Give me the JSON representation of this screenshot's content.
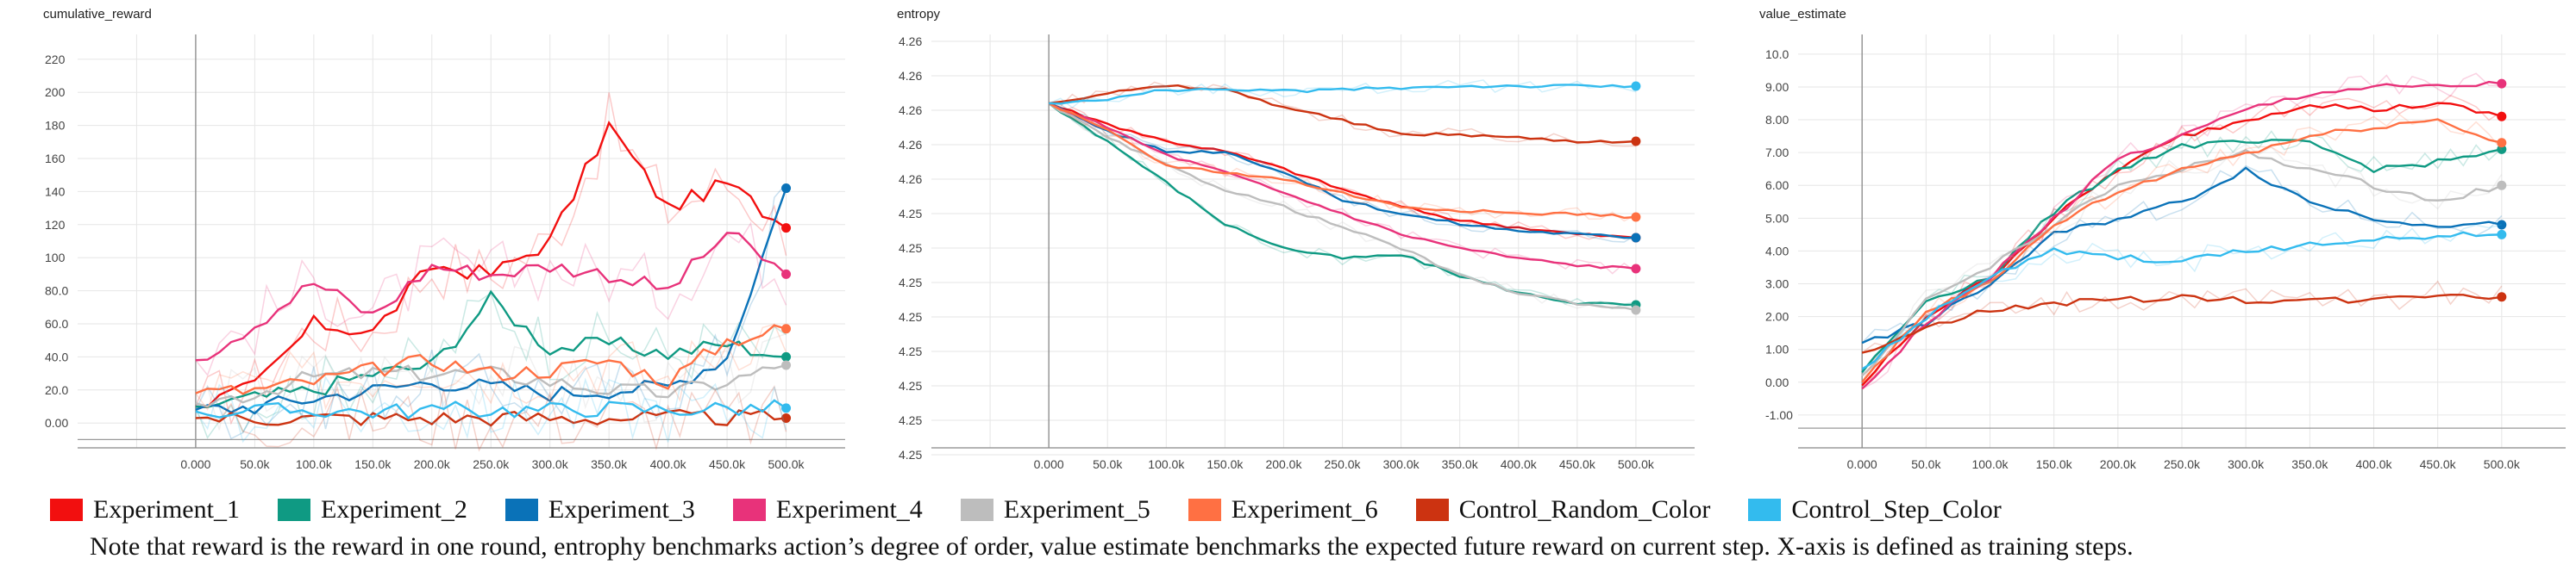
{
  "colors": {
    "Experiment_1": "#f20f0f",
    "Experiment_2": "#0f9a83",
    "Experiment_3": "#0a72b8",
    "Experiment_4": "#e8327a",
    "Experiment_5": "#bdbdbd",
    "Experiment_6": "#ff7043",
    "Control_Random_Color": "#cc3311",
    "Control_Step_Color": "#33bbee"
  },
  "legend": [
    {
      "name": "Experiment_1",
      "color": "#f20f0f"
    },
    {
      "name": "Experiment_2",
      "color": "#0f9a83"
    },
    {
      "name": "Experiment_3",
      "color": "#0a72b8"
    },
    {
      "name": "Experiment_4",
      "color": "#e8327a"
    },
    {
      "name": "Experiment_5",
      "color": "#bdbdbd"
    },
    {
      "name": "Experiment_6",
      "color": "#ff7043"
    },
    {
      "name": "Control_Random_Color",
      "color": "#cc3311"
    },
    {
      "name": "Control_Step_Color",
      "color": "#33bbee"
    }
  ],
  "note": "Note that reward is the reward in one round, entrophy benchmarks action’s degree of order, value estimate benchmarks the expected future reward on current step. X-axis is defined as training steps.",
  "chart_data": [
    {
      "type": "line",
      "title": "cumulative_reward",
      "x_tick_labels": [
        "0.000",
        "50.0k",
        "100.0k",
        "150.0k",
        "200.0k",
        "250.0k",
        "300.0k",
        "350.0k",
        "400.0k",
        "450.0k",
        "500.0k"
      ],
      "y_tick_labels": [
        "0.00",
        "20.0",
        "40.0",
        "60.0",
        "80.0",
        "100",
        "120",
        "140",
        "160",
        "180",
        "200",
        "220"
      ],
      "xlim": [
        -100000,
        550000
      ],
      "ylim": [
        -15,
        235
      ],
      "x": [
        0,
        50000,
        100000,
        150000,
        200000,
        250000,
        300000,
        350000,
        400000,
        450000,
        500000
      ],
      "series": [
        {
          "name": "Experiment_1",
          "values": [
            10,
            22,
            60,
            55,
            95,
            90,
            110,
            180,
            130,
            145,
            118
          ]
        },
        {
          "name": "Experiment_2",
          "values": [
            10,
            15,
            20,
            30,
            35,
            75,
            45,
            48,
            42,
            48,
            40
          ]
        },
        {
          "name": "Experiment_3",
          "values": [
            8,
            10,
            15,
            20,
            25,
            22,
            18,
            20,
            22,
            40,
            142
          ]
        },
        {
          "name": "Experiment_4",
          "values": [
            38,
            60,
            85,
            65,
            95,
            90,
            95,
            90,
            80,
            115,
            90
          ]
        },
        {
          "name": "Experiment_5",
          "values": [
            12,
            18,
            28,
            30,
            30,
            30,
            25,
            20,
            18,
            25,
            35
          ]
        },
        {
          "name": "Experiment_6",
          "values": [
            18,
            20,
            25,
            32,
            38,
            30,
            32,
            38,
            25,
            50,
            57
          ]
        },
        {
          "name": "Control_Random_Color",
          "values": [
            3,
            3,
            3,
            3,
            3,
            3,
            3,
            3,
            3,
            3,
            3
          ]
        },
        {
          "name": "Control_Step_Color",
          "values": [
            7,
            7,
            8,
            7,
            8,
            8,
            8,
            9,
            8,
            9,
            9
          ]
        }
      ]
    },
    {
      "type": "line",
      "title": "entropy",
      "x_tick_labels": [
        "0.000",
        "50.0k",
        "100.0k",
        "150.0k",
        "200.0k",
        "250.0k",
        "300.0k",
        "350.0k",
        "400.0k",
        "450.0k",
        "500.0k"
      ],
      "y_tick_labels": [
        "4.25",
        "4.25",
        "4.25",
        "4.25",
        "4.25",
        "4.25",
        "4.25",
        "4.25",
        "4.26",
        "4.26",
        "4.26",
        "4.26",
        "4.26"
      ],
      "xlim": [
        -100000,
        550000
      ],
      "ylim": [
        0,
        12
      ],
      "x": [
        0,
        50000,
        100000,
        150000,
        200000,
        250000,
        300000,
        350000,
        400000,
        450000,
        500000
      ],
      "series": [
        {
          "name": "Experiment_1",
          "values": [
            10,
            9.4,
            8.9,
            8.6,
            8.1,
            7.5,
            7.0,
            6.6,
            6.4,
            6.2,
            6.1
          ]
        },
        {
          "name": "Experiment_2",
          "values": [
            10,
            8.9,
            7.7,
            6.5,
            5.8,
            5.5,
            5.6,
            5.0,
            4.5,
            4.2,
            4.15
          ]
        },
        {
          "name": "Experiment_3",
          "values": [
            10,
            9.2,
            8.6,
            8.6,
            8.0,
            7.2,
            6.8,
            6.5,
            6.3,
            6.2,
            6.1
          ]
        },
        {
          "name": "Experiment_4",
          "values": [
            10,
            9.3,
            8.5,
            8.0,
            7.4,
            6.8,
            6.2,
            5.8,
            5.5,
            5.3,
            5.2
          ]
        },
        {
          "name": "Experiment_5",
          "values": [
            10,
            9.0,
            8.2,
            7.5,
            7.0,
            6.4,
            5.8,
            5.0,
            4.5,
            4.2,
            4.0
          ]
        },
        {
          "name": "Experiment_6",
          "values": [
            10,
            9.2,
            8.2,
            8.0,
            7.8,
            7.4,
            7.0,
            6.9,
            6.8,
            6.8,
            6.7
          ]
        },
        {
          "name": "Control_Random_Color",
          "values": [
            10,
            10.3,
            10.5,
            10.4,
            9.9,
            9.5,
            9.1,
            9.1,
            9.0,
            8.9,
            8.9
          ]
        },
        {
          "name": "Control_Step_Color",
          "values": [
            10,
            10.1,
            10.4,
            10.4,
            10.35,
            10.4,
            10.45,
            10.5,
            10.5,
            10.5,
            10.5
          ]
        }
      ]
    },
    {
      "type": "line",
      "title": "value_estimate",
      "x_tick_labels": [
        "0.000",
        "50.0k",
        "100.0k",
        "150.0k",
        "200.0k",
        "250.0k",
        "300.0k",
        "350.0k",
        "400.0k",
        "450.0k",
        "500.0k"
      ],
      "y_tick_labels": [
        "-1.00",
        "0.00",
        "1.00",
        "2.00",
        "3.00",
        "4.00",
        "5.00",
        "6.00",
        "7.00",
        "8.00",
        "9.00",
        "10.0"
      ],
      "xlim": [
        -50000,
        550000
      ],
      "ylim": [
        -2,
        10.6
      ],
      "x": [
        0,
        50000,
        100000,
        150000,
        200000,
        250000,
        300000,
        350000,
        400000,
        450000,
        500000
      ],
      "series": [
        {
          "name": "Experiment_1",
          "values": [
            -0.1,
            2.0,
            3.2,
            5.0,
            6.5,
            7.5,
            8.0,
            8.5,
            8.3,
            8.5,
            8.1
          ]
        },
        {
          "name": "Experiment_2",
          "values": [
            0.3,
            2.5,
            3.2,
            5.2,
            6.5,
            7.2,
            7.3,
            7.3,
            6.5,
            6.7,
            7.1
          ]
        },
        {
          "name": "Experiment_3",
          "values": [
            1.2,
            1.8,
            3.0,
            4.5,
            5.0,
            5.5,
            6.5,
            5.5,
            5.0,
            4.8,
            4.8
          ]
        },
        {
          "name": "Experiment_4",
          "values": [
            -0.2,
            1.8,
            3.2,
            5.0,
            6.8,
            7.5,
            8.3,
            8.8,
            9.0,
            9.0,
            9.1
          ]
        },
        {
          "name": "Experiment_5",
          "values": [
            0.2,
            2.5,
            3.5,
            4.8,
            6.0,
            6.5,
            7.0,
            6.5,
            6.0,
            5.5,
            6.0
          ]
        },
        {
          "name": "Experiment_6",
          "values": [
            0.0,
            2.2,
            3.0,
            4.8,
            5.8,
            6.5,
            7.0,
            7.5,
            7.8,
            8.0,
            7.3
          ]
        },
        {
          "name": "Control_Random_Color",
          "values": [
            0.9,
            1.7,
            2.2,
            2.4,
            2.5,
            2.6,
            2.5,
            2.5,
            2.5,
            2.7,
            2.6
          ]
        },
        {
          "name": "Control_Step_Color",
          "values": [
            0.4,
            2.0,
            3.2,
            4.0,
            3.8,
            3.7,
            4.0,
            4.2,
            4.3,
            4.5,
            4.5
          ]
        }
      ]
    }
  ]
}
